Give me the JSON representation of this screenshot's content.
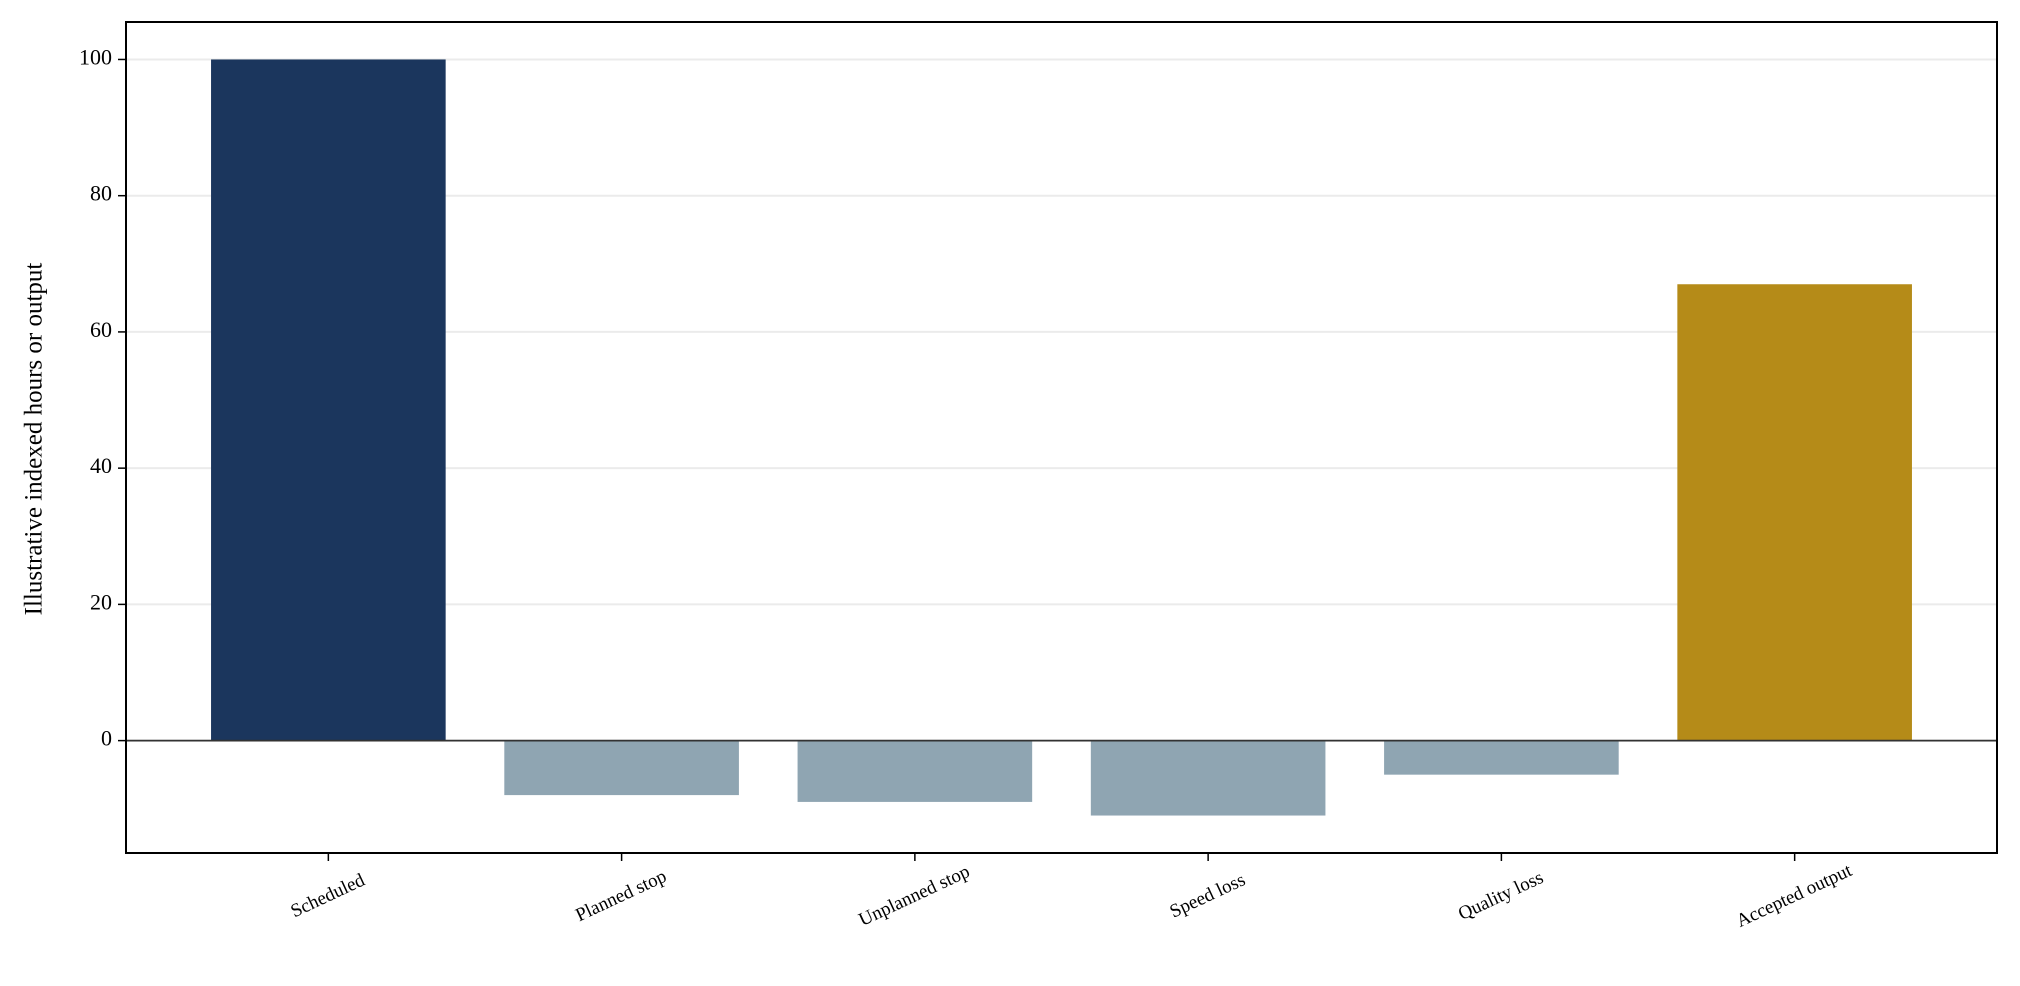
{
  "chart_data": {
    "type": "bar",
    "y_label": "Illustrative indexed hours or output",
    "categories": [
      "Scheduled",
      "Planned stop",
      "Unplanned stop",
      "Speed loss",
      "Quality loss",
      "Accepted output"
    ],
    "values": [
      100,
      -8,
      -9,
      -11,
      -5,
      67
    ],
    "colors": [
      "#1b365d",
      "#8fa5b2",
      "#8fa5b2",
      "#8fa5b2",
      "#8fa5b2",
      "#b58b18"
    ],
    "ylim": [
      -16.5,
      105.5
    ],
    "yticks": [
      0,
      20,
      40,
      60,
      80,
      100
    ],
    "grid": true
  }
}
